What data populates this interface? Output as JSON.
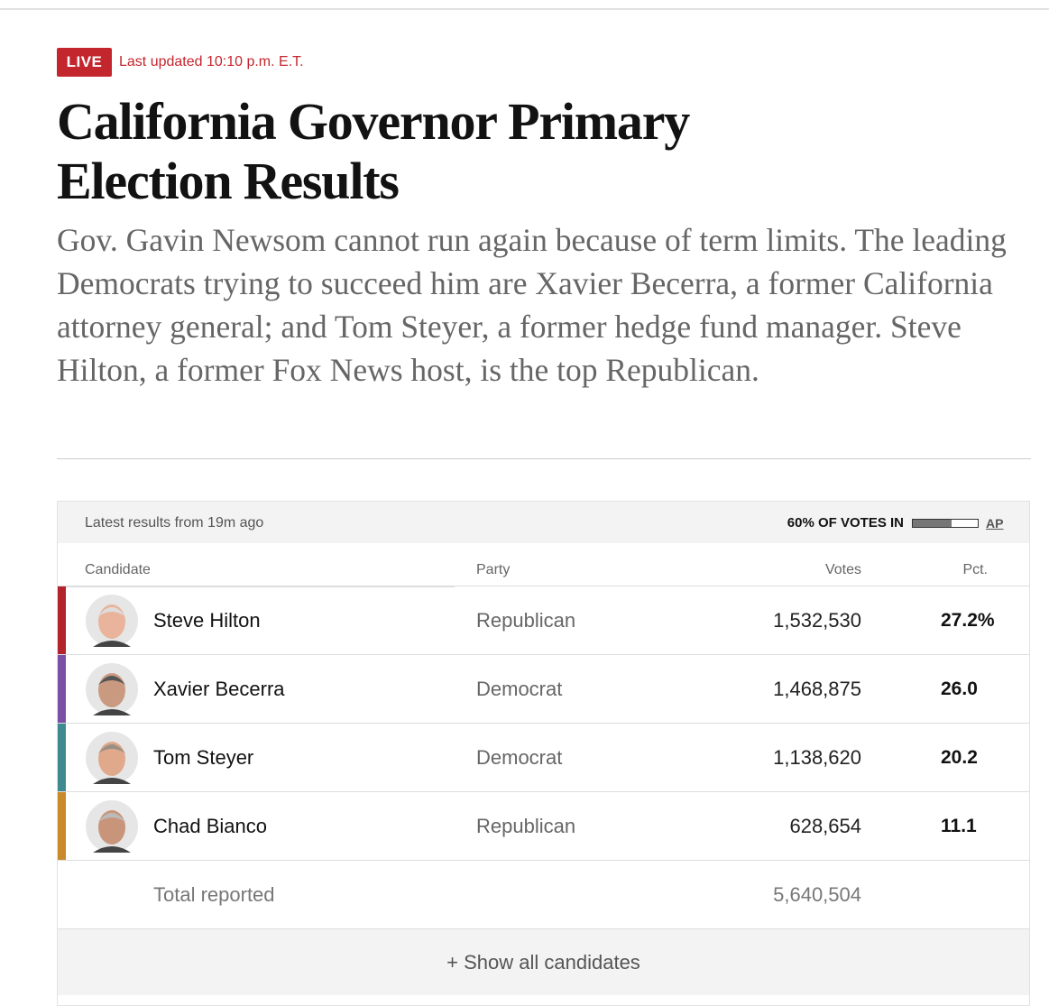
{
  "header": {
    "badge": "LIVE",
    "updated": "Last updated 10:10 p.m. E.T.",
    "title": "California Governor Primary Election Results",
    "description": "Gov. Gavin Newsom cannot run again because of term limits. The leading Democrats trying to succeed him are Xavier Becerra, a former California attorney general; and Tom Steyer, a former hedge fund manager. Steve Hilton, a former Fox News host, is the top Republican."
  },
  "table": {
    "latest": "Latest results from 19m ago",
    "reporting": {
      "label": "60% OF VOTES IN",
      "percent": 60,
      "source": "AP"
    },
    "columns": [
      "Candidate",
      "Party",
      "Votes",
      "Pct."
    ],
    "rows": [
      {
        "name": "Steve Hilton",
        "party": "Republican",
        "votes": "1,532,530",
        "pct": "27.2%",
        "color": "#b2232b"
      },
      {
        "name": "Xavier Becerra",
        "party": "Democrat",
        "votes": "1,468,875",
        "pct": "26.0",
        "color": "#7a4fa5"
      },
      {
        "name": "Tom Steyer",
        "party": "Democrat",
        "votes": "1,138,620",
        "pct": "20.2",
        "color": "#3f8a90"
      },
      {
        "name": "Chad Bianco",
        "party": "Republican",
        "votes": "628,654",
        "pct": "11.1",
        "color": "#c98a2c"
      }
    ],
    "total": {
      "label": "Total reported",
      "votes": "5,640,504"
    },
    "show_all": "+ Show all candidates"
  }
}
